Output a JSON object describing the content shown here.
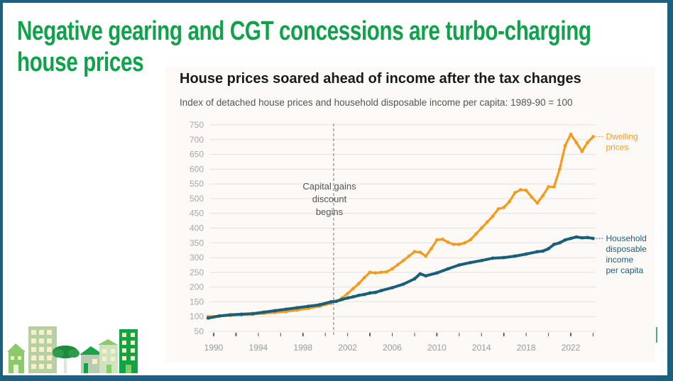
{
  "slide": {
    "headline": "Negative gearing and CGT concessions are turbo-charging house prices",
    "colors": {
      "frame": "#1b5f82",
      "headline": "#10a24a"
    }
  },
  "chart_data": {
    "type": "line",
    "title": "House prices soared ahead of income after the tax changes",
    "subtitle": "Index of detached house prices and household disposable income per capita: 1989-90 = 100",
    "xlabel": "",
    "ylabel": "",
    "xlim": [
      1989,
      2024
    ],
    "ylim": [
      50,
      750
    ],
    "yticks": [
      50,
      100,
      150,
      200,
      250,
      300,
      350,
      400,
      450,
      500,
      550,
      600,
      650,
      700,
      750
    ],
    "xticks": [
      1990,
      1994,
      1998,
      2002,
      2006,
      2010,
      2014,
      2018,
      2022
    ],
    "grid": true,
    "legend": "direct-labels-right",
    "annotation": {
      "x": 2000.75,
      "text_lines": [
        "Capital gains",
        "discount",
        "begins"
      ]
    },
    "series": [
      {
        "name": "Dwelling prices",
        "label_lines": [
          "Dwelling",
          "prices"
        ],
        "color": "#f39b1c",
        "x": [
          1989.5,
          1990.5,
          1991.5,
          1992.5,
          1993.5,
          1994.5,
          1995.5,
          1996.5,
          1997.5,
          1998.5,
          1999.5,
          2000.5,
          2001.0,
          2001.5,
          2002.0,
          2002.5,
          2003.0,
          2003.5,
          2004.0,
          2004.5,
          2005.0,
          2005.5,
          2006.0,
          2006.5,
          2007.0,
          2007.5,
          2008.0,
          2008.5,
          2009.0,
          2009.5,
          2010.0,
          2010.5,
          2011.0,
          2011.5,
          2012.0,
          2012.5,
          2013.0,
          2013.5,
          2014.0,
          2014.5,
          2015.0,
          2015.5,
          2016.0,
          2016.5,
          2017.0,
          2017.5,
          2018.0,
          2018.5,
          2019.0,
          2019.5,
          2020.0,
          2020.5,
          2021.0,
          2021.5,
          2022.0,
          2022.5,
          2023.0,
          2023.5,
          2024.0
        ],
        "values": [
          100,
          102,
          104,
          106,
          108,
          111,
          114,
          117,
          122,
          128,
          135,
          145,
          152,
          163,
          178,
          195,
          212,
          232,
          250,
          248,
          250,
          252,
          262,
          276,
          290,
          305,
          320,
          318,
          305,
          330,
          360,
          362,
          352,
          345,
          345,
          350,
          360,
          380,
          400,
          420,
          440,
          465,
          470,
          490,
          520,
          530,
          528,
          505,
          485,
          510,
          540,
          540,
          600,
          680,
          718,
          690,
          660,
          690,
          710
        ]
      },
      {
        "name": "Household disposable income per capita",
        "label_lines": [
          "Household",
          "disposable",
          "income",
          "per capita"
        ],
        "color": "#1a5f7a",
        "x": [
          1989.5,
          1990.5,
          1991.5,
          1992.5,
          1993.5,
          1994.5,
          1995.5,
          1996.5,
          1997.5,
          1998.5,
          1999.5,
          2000.5,
          2001.0,
          2001.5,
          2002.0,
          2002.5,
          2003.0,
          2003.5,
          2004.0,
          2004.5,
          2005.0,
          2006.0,
          2007.0,
          2008.0,
          2008.5,
          2009.0,
          2010.0,
          2011.0,
          2012.0,
          2013.0,
          2014.0,
          2015.0,
          2016.0,
          2017.0,
          2018.0,
          2019.0,
          2019.5,
          2020.0,
          2020.5,
          2021.0,
          2021.5,
          2022.0,
          2022.5,
          2023.0,
          2023.5,
          2024.0
        ],
        "values": [
          95,
          102,
          106,
          108,
          110,
          115,
          120,
          125,
          130,
          135,
          140,
          150,
          152,
          158,
          163,
          167,
          172,
          175,
          180,
          182,
          188,
          198,
          210,
          228,
          245,
          238,
          248,
          262,
          275,
          283,
          290,
          298,
          300,
          305,
          312,
          320,
          322,
          330,
          345,
          350,
          360,
          365,
          370,
          367,
          368,
          365
        ]
      }
    ]
  }
}
